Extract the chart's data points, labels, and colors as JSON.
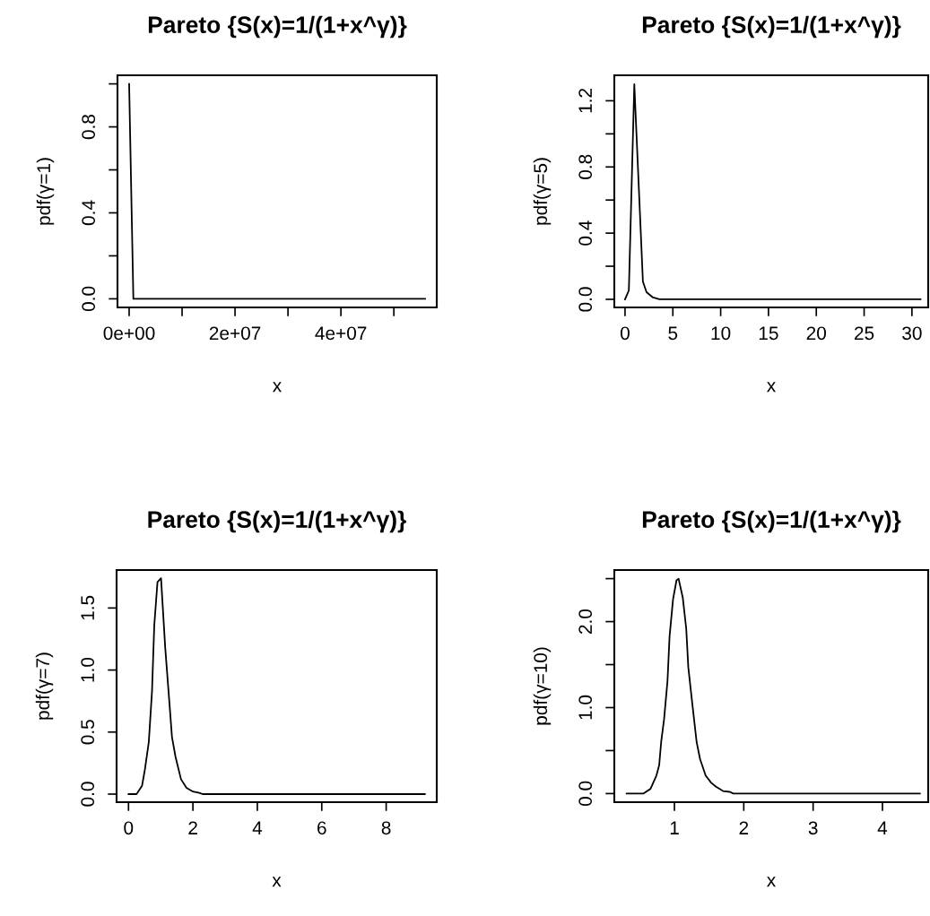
{
  "chart_data": [
    {
      "type": "line",
      "title": "Pareto {S(x)=1/(1+x^γ)}",
      "xlabel": "x",
      "ylabel": "pdf(γ=1)",
      "series": [
        {
          "color": "#000000",
          "x": [
            0,
            800000,
            55900000
          ],
          "values": [
            1.0,
            0.0,
            0.0
          ]
        }
      ],
      "xlim": [
        -2200000,
        58100000
      ],
      "ylim": [
        -0.04,
        1.04
      ],
      "xticks": [
        {
          "value": 0,
          "label": "0e+00"
        },
        {
          "value": 10000000,
          "label": null
        },
        {
          "value": 20000000,
          "label": "2e+07"
        },
        {
          "value": 30000000,
          "label": null
        },
        {
          "value": 40000000,
          "label": "4e+07"
        },
        {
          "value": 50000000,
          "label": null
        }
      ],
      "yticks": [
        {
          "value": 0,
          "label": "0.0"
        },
        {
          "value": 0.2,
          "label": null
        },
        {
          "value": 0.4,
          "label": "0.4"
        },
        {
          "value": 0.6,
          "label": null
        },
        {
          "value": 0.8,
          "label": "0.8"
        },
        {
          "value": 1.0,
          "label": null
        }
      ],
      "grid": false,
      "legend": false,
      "marker": "none",
      "line_style": "solid"
    },
    {
      "type": "line",
      "title": "Pareto {S(x)=1/(1+x^γ)}",
      "xlabel": "x",
      "ylabel": "pdf(γ=5)",
      "series": [
        {
          "color": "#000000",
          "x": [
            0,
            0.4,
            0.97,
            1.87,
            2.25,
            2.87,
            3.6,
            30.9
          ],
          "values": [
            0.0,
            0.054,
            1.3,
            0.107,
            0.043,
            0.013,
            0.0,
            0.0
          ]
        }
      ],
      "xlim": [
        -1.12,
        31.7
      ],
      "ylim": [
        -0.049,
        1.354
      ],
      "xticks": [
        0,
        5,
        10,
        15,
        20,
        25,
        30
      ],
      "yticks": [
        {
          "value": 0,
          "label": "0.0"
        },
        {
          "value": 0.2,
          "label": null
        },
        {
          "value": 0.4,
          "label": "0.4"
        },
        {
          "value": 0.6,
          "label": null
        },
        {
          "value": 0.8,
          "label": "0.8"
        },
        {
          "value": 1.0,
          "label": null
        },
        {
          "value": 1.2,
          "label": "1.2"
        }
      ],
      "grid": false,
      "legend": false,
      "marker": "none",
      "line_style": "solid"
    },
    {
      "type": "line",
      "title": "Pareto {S(x)=1/(1+x^γ)}",
      "xlabel": "x",
      "ylabel": "pdf(γ=7)",
      "series": [
        {
          "color": "#000000",
          "x": [
            0,
            0.25,
            0.42,
            0.51,
            0.63,
            0.73,
            0.8,
            0.9,
            1.01,
            1.14,
            1.26,
            1.35,
            1.46,
            1.63,
            1.8,
            2.0,
            2.2,
            2.3,
            9.2
          ],
          "values": [
            0.0,
            0.0,
            0.067,
            0.2,
            0.42,
            0.83,
            1.36,
            1.71,
            1.74,
            1.18,
            0.77,
            0.46,
            0.3,
            0.12,
            0.05,
            0.02,
            0.01,
            0.0,
            0.0
          ]
        }
      ],
      "xlim": [
        -0.37,
        9.57
      ],
      "ylim": [
        -0.065,
        1.806
      ],
      "xticks": [
        0,
        2,
        4,
        6,
        8
      ],
      "yticks": [
        {
          "value": 0,
          "label": "0.0"
        },
        {
          "value": 0.5,
          "label": "0.5"
        },
        {
          "value": 1.0,
          "label": "1.0"
        },
        {
          "value": 1.5,
          "label": "1.5"
        }
      ],
      "grid": false,
      "legend": false,
      "marker": "none",
      "line_style": "solid"
    },
    {
      "type": "line",
      "title": "Pareto {S(x)=1/(1+x^γ)}",
      "xlabel": "x",
      "ylabel": "pdf(γ=10)",
      "series": [
        {
          "color": "#000000",
          "x": [
            0.31,
            0.55,
            0.655,
            0.74,
            0.78,
            0.81,
            0.85,
            0.9,
            0.93,
            0.98,
            1.03,
            1.06,
            1.12,
            1.17,
            1.2,
            1.25,
            1.32,
            1.37,
            1.45,
            1.53,
            1.6,
            1.7,
            1.8,
            1.85,
            4.54
          ],
          "values": [
            0.0,
            0.0,
            0.055,
            0.21,
            0.33,
            0.61,
            0.86,
            1.31,
            1.83,
            2.26,
            2.48,
            2.5,
            2.28,
            1.92,
            1.47,
            1.1,
            0.6,
            0.4,
            0.21,
            0.125,
            0.08,
            0.03,
            0.02,
            0.0,
            0.0
          ]
        }
      ],
      "xlim": [
        0.133,
        4.66
      ],
      "ylim": [
        -0.1,
        2.6
      ],
      "xticks": [
        1,
        2,
        3,
        4
      ],
      "yticks": [
        {
          "value": 0,
          "label": "0.0"
        },
        {
          "value": 0.5,
          "label": null
        },
        {
          "value": 1.0,
          "label": "1.0"
        },
        {
          "value": 1.5,
          "label": null
        },
        {
          "value": 2.0,
          "label": "2.0"
        },
        {
          "value": 2.5,
          "label": null
        }
      ],
      "grid": false,
      "legend": false,
      "marker": "none",
      "line_style": "solid"
    }
  ]
}
